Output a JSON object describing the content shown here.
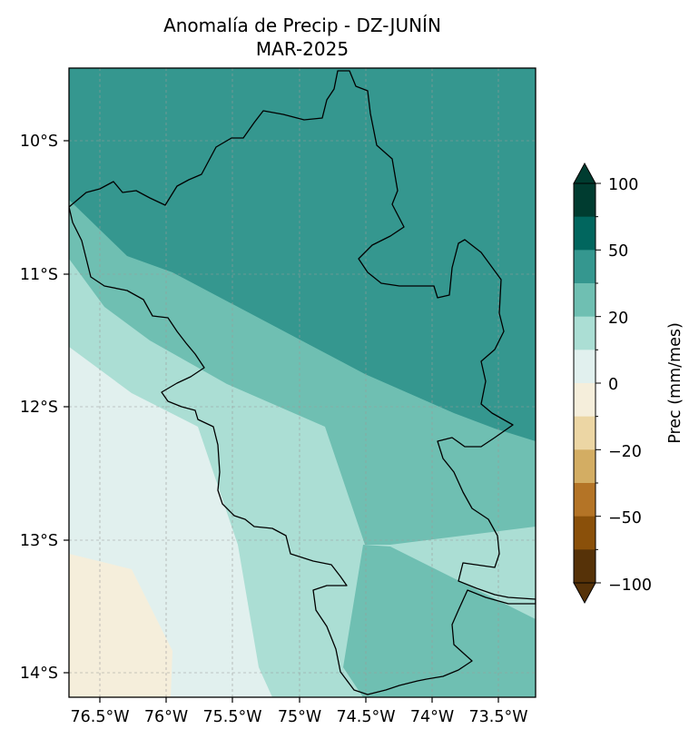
{
  "title": {
    "line1": "Anomalía de Precip - DZ-JUNÍN",
    "line2": "MAR-2025"
  },
  "axes": {
    "y_ticks": [
      "10°S",
      "11°S",
      "12°S",
      "13°S",
      "14°S"
    ],
    "x_ticks": [
      "76.5°W",
      "76°W",
      "75.5°W",
      "75°W",
      "74.5°W",
      "74°W",
      "73.5°W"
    ],
    "grid": true
  },
  "colorbar": {
    "label": "Prec (mm/mes)",
    "tick_labels": [
      "100",
      "50",
      "20",
      "0",
      "−20",
      "−50",
      "−100"
    ],
    "levels": [
      -100,
      -75,
      -50,
      -35,
      -20,
      -10,
      0,
      10,
      20,
      35,
      50,
      75,
      100
    ],
    "colors_top_to_bottom": [
      "#003c30",
      "#01665e",
      "#35978f",
      "#6fbfb2",
      "#abded4",
      "#e1f0ee",
      "#f5eedb",
      "#ecd6a4",
      "#d3ad63",
      "#b47426",
      "#8a500a",
      "#563208"
    ]
  },
  "chart_data": {
    "type": "heatmap",
    "title": "Anomalía de Precip - DZ-JUNÍN MAR-2025",
    "xlabel": "",
    "ylabel": "",
    "x_range": [
      "76.7°W",
      "73.2°W"
    ],
    "y_range": [
      "9.5°S",
      "14.2°S"
    ],
    "colorbar_label": "Prec (mm/mes)",
    "colorbar_ticks": [
      -100,
      -50,
      -20,
      0,
      20,
      50,
      100
    ],
    "region_outline": "Junín (Perú)",
    "dominant_anomaly_zones": [
      {
        "area": "north / northeast",
        "range": "35 to 50"
      },
      {
        "area": "central band",
        "range": "20 to 35"
      },
      {
        "area": "central-west band",
        "range": "10 to 20"
      },
      {
        "area": "southwest",
        "range": "0 to 10"
      },
      {
        "area": "far southwest corner",
        "range": "-10 to 0"
      }
    ]
  }
}
